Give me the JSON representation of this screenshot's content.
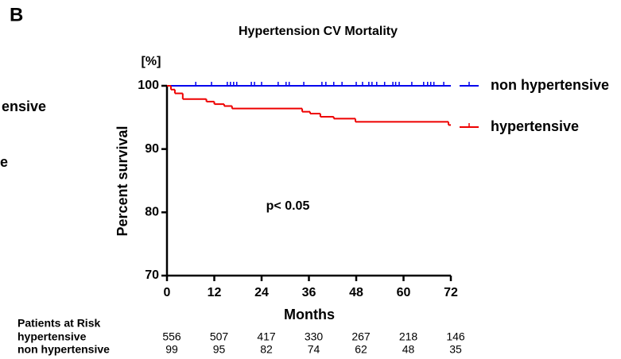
{
  "panel_label": "B",
  "left_fragments": [
    "ensive",
    "e"
  ],
  "chart_data": {
    "type": "survival",
    "title": "Hypertension CV Mortality",
    "y_unit": "[%]",
    "y_label": "Percent survival",
    "x_label": "Months",
    "annotation": "p< 0.05",
    "xlim": [
      0,
      72
    ],
    "xticks": [
      0,
      12,
      24,
      36,
      48,
      60,
      72
    ],
    "ylim": [
      70,
      100
    ],
    "yticks": [
      70,
      80,
      90,
      100
    ],
    "series": [
      {
        "name": "non hypertensive",
        "color": "#0000ee",
        "x": [
          0,
          72
        ],
        "values": [
          100,
          100
        ],
        "censor_x": [
          7.3,
          11.3,
          15.3,
          16.1,
          16.9,
          17.7,
          21.4,
          22.2,
          24,
          28.2,
          30.2,
          31,
          34.7,
          39.3,
          40.3,
          42.3,
          44.4,
          48,
          49.6,
          51.2,
          52,
          53.2,
          55.2,
          57.3,
          58,
          58.9,
          62.1,
          65.1,
          66.1,
          66.9,
          67.7,
          70.2
        ]
      },
      {
        "name": "hypertensive",
        "color": "#ee0000",
        "x": [
          0,
          1,
          2,
          4,
          10,
          12,
          14.5,
          16.5,
          34.3,
          36.3,
          38.9,
          42.3,
          47.8,
          71.4,
          72
        ],
        "values": [
          100,
          99.4,
          98.8,
          97.9,
          97.5,
          97.1,
          96.8,
          96.4,
          95.9,
          95.6,
          95.1,
          94.8,
          94.3,
          93.8,
          93.8
        ]
      }
    ],
    "risk_table": {
      "title": "Patients at Risk",
      "rows": [
        {
          "label": "hypertensive",
          "values": [
            556,
            507,
            417,
            330,
            267,
            218,
            146
          ]
        },
        {
          "label": "non hypertensive",
          "values": [
            99,
            95,
            82,
            74,
            62,
            48,
            35
          ]
        }
      ]
    }
  }
}
